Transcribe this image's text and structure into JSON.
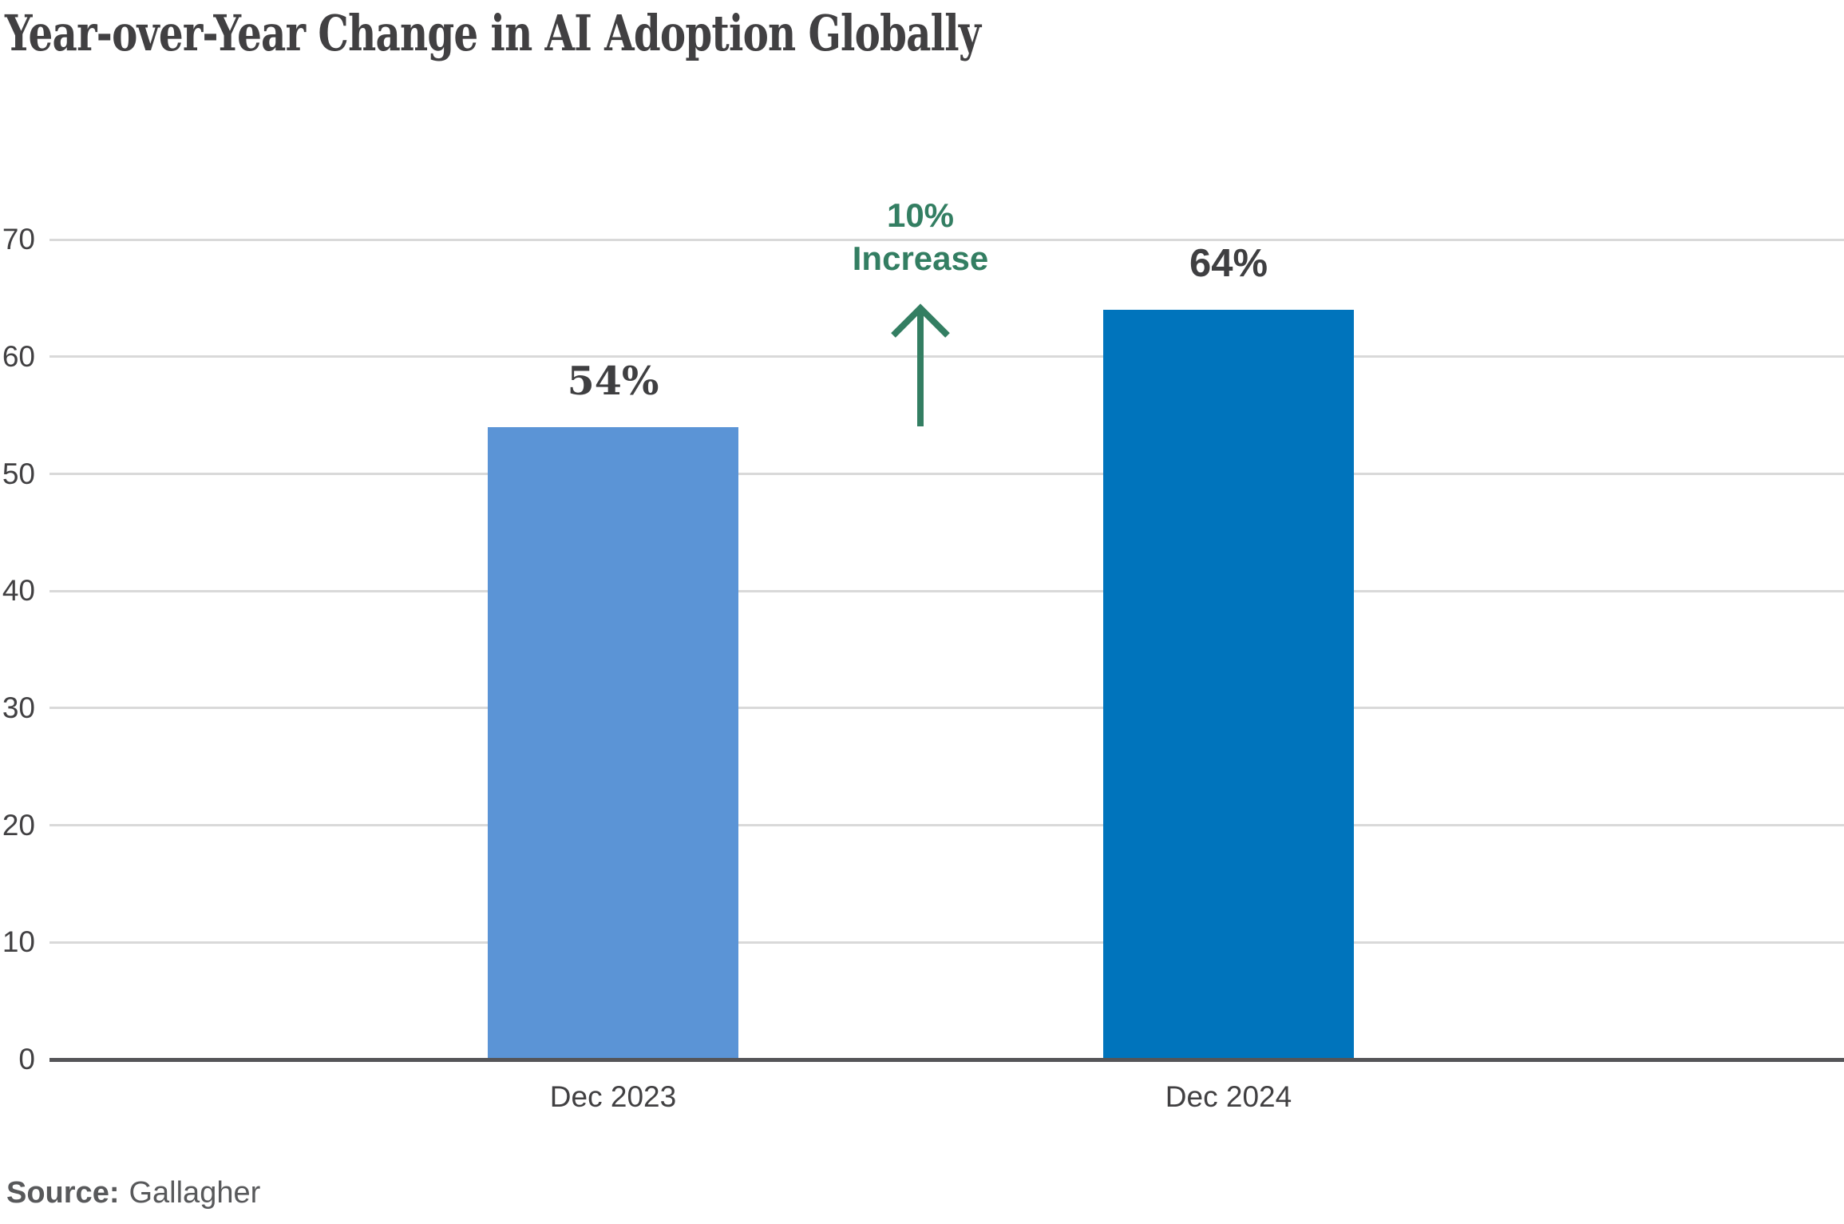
{
  "title": "Year-over-Year Change in AI Adoption Globally",
  "annotation": {
    "line1": "10%",
    "line2": "Increase",
    "icon": "up-arrow-icon",
    "color": "#337E62"
  },
  "source": {
    "label": "Source:",
    "value": "Gallagher"
  },
  "colors": {
    "bar_dec_2023": "#5B94D6",
    "bar_dec_2024": "#0074BC",
    "annotation_green": "#337E62",
    "gridline": "#D9D9D9",
    "axis_line": "#555558",
    "text_dark": "#414042",
    "text_source_gray": "#58595B",
    "background": "#FFFFFF"
  },
  "chart_data": {
    "type": "bar",
    "title": "Year-over-Year Change in AI Adoption Globally",
    "categories": [
      "Dec 2023",
      "Dec 2024"
    ],
    "values": [
      54,
      64
    ],
    "value_labels": [
      "54%",
      "64%"
    ],
    "bar_colors": [
      "#5B94D6",
      "#0074BC"
    ],
    "xlabel": "",
    "ylabel": "",
    "yticks": [
      0,
      10,
      20,
      30,
      40,
      50,
      60,
      70
    ],
    "ylim": [
      0,
      70
    ],
    "grid": true,
    "legend": false,
    "annotation": {
      "text": "10% Increase",
      "value_change": 10,
      "direction": "up"
    },
    "source": "Gallagher"
  }
}
